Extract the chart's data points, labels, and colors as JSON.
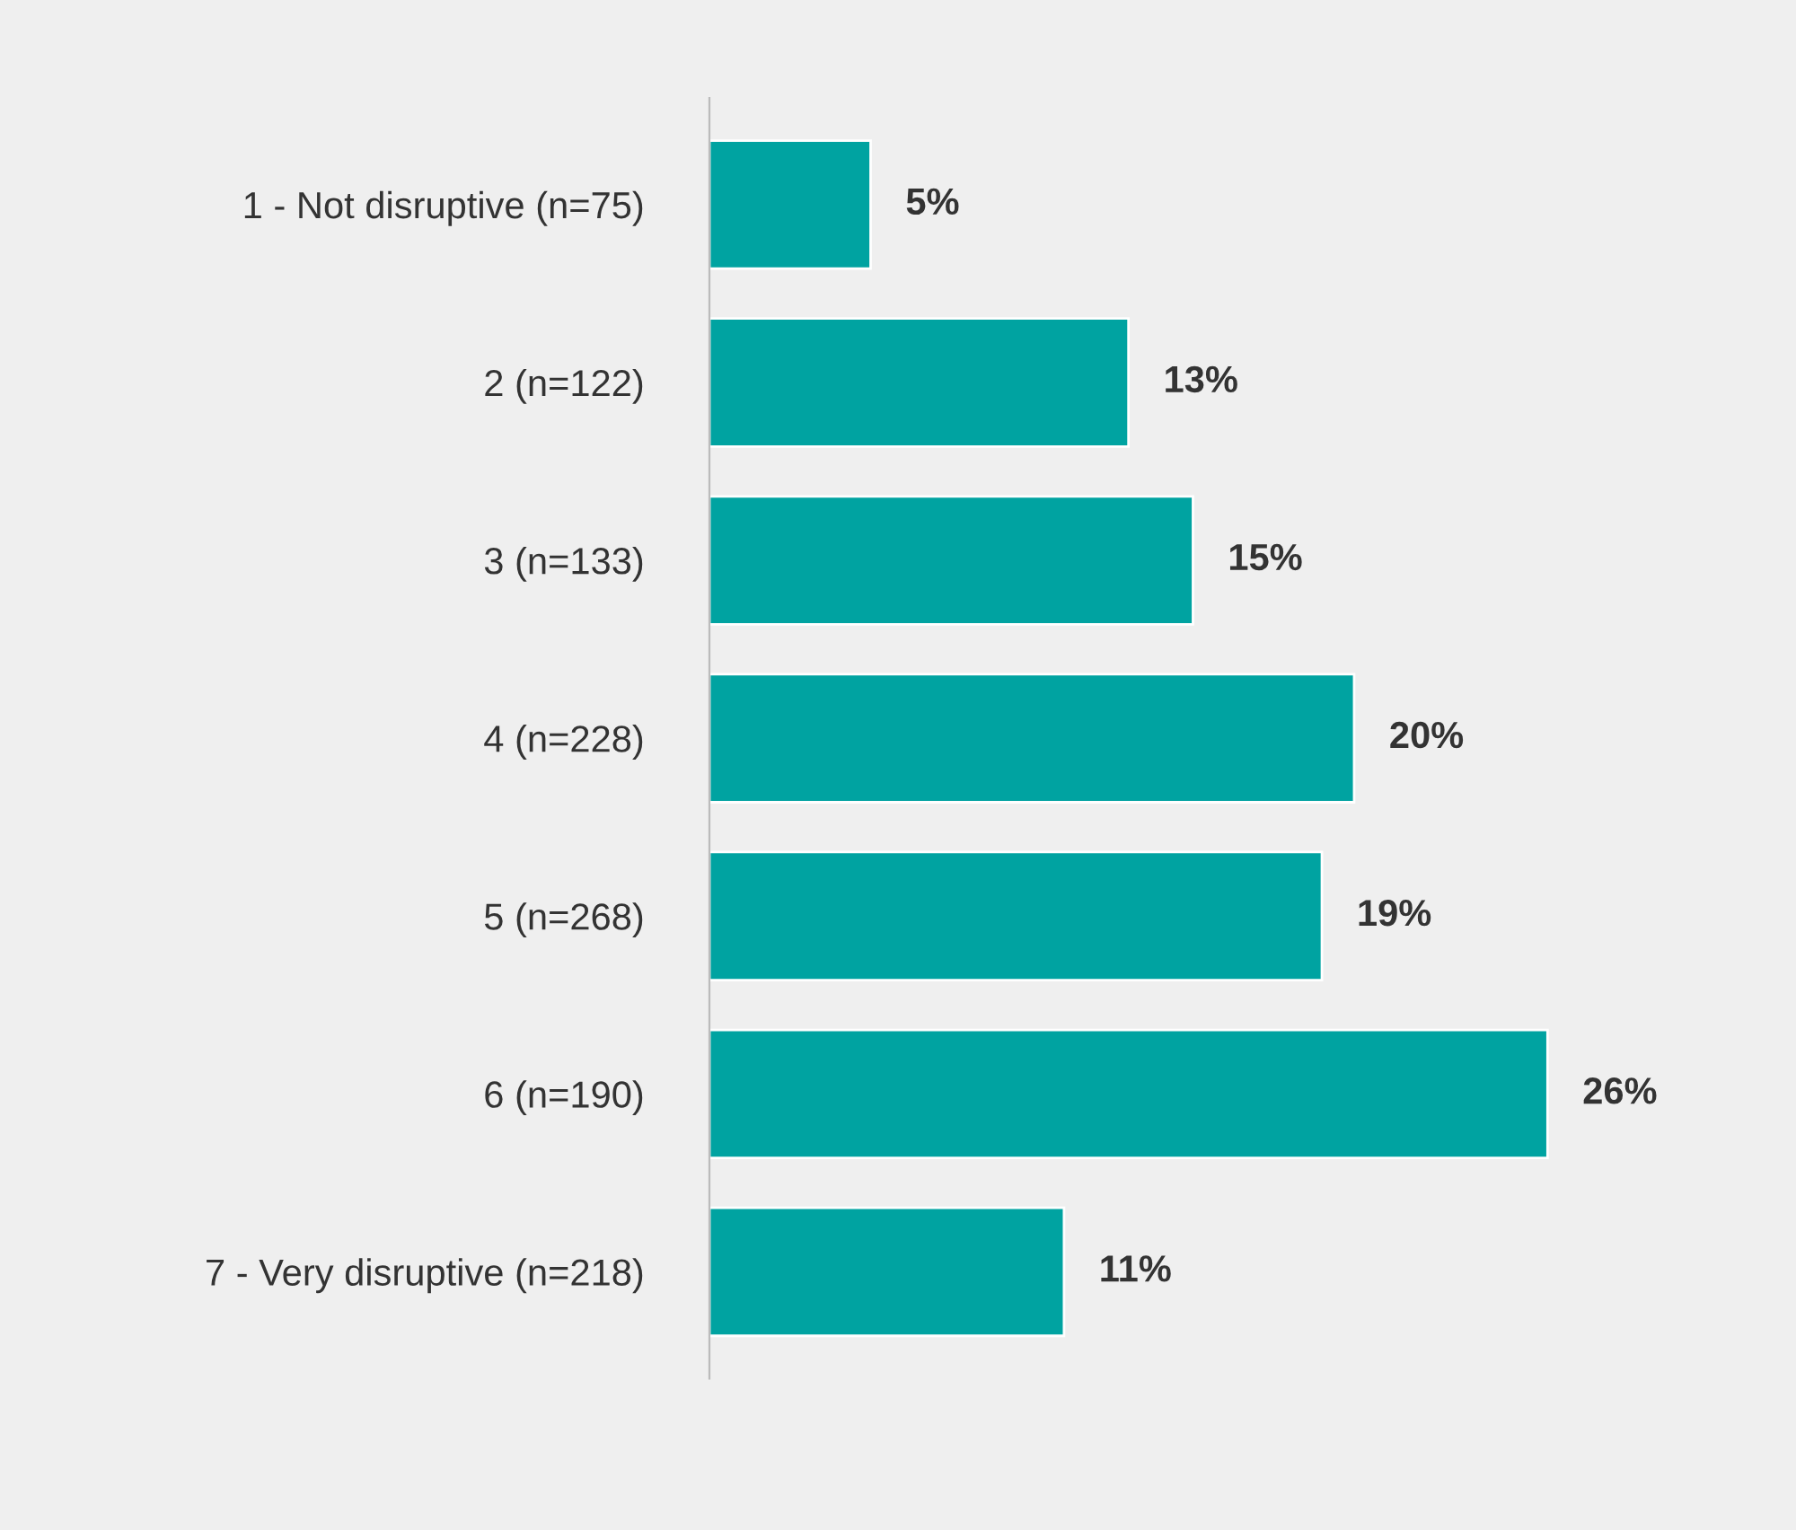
{
  "chart_data": {
    "type": "bar",
    "orientation": "horizontal",
    "categories": [
      "1 - Not disruptive (n=75)",
      "2 (n=122)",
      "3 (n=133)",
      "4 (n=228)",
      "5 (n=268)",
      "6 (n=190)",
      "7 - Very disruptive (n=218)"
    ],
    "values": [
      5,
      13,
      15,
      20,
      19,
      26,
      11
    ],
    "value_labels": [
      "5%",
      "13%",
      "15%",
      "20%",
      "19%",
      "26%",
      "11%"
    ],
    "color": "#00a3a1",
    "grid": false,
    "legend": false,
    "tick_labels": "y"
  }
}
